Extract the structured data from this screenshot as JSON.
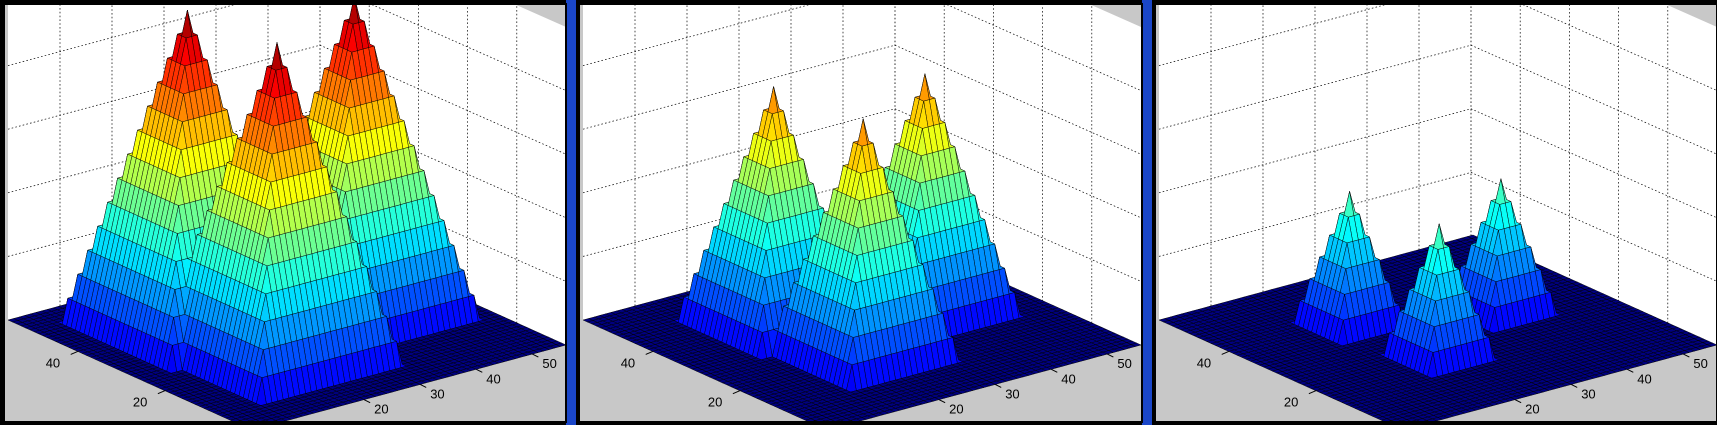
{
  "colors": {
    "pane_top": "#c8c8c8",
    "wall": "#ffffff",
    "floor": "#000080",
    "divider": "#1a46c8",
    "frame": "#000000"
  },
  "chart_data": [
    {
      "type": "surface3d",
      "title": "",
      "xlabel": "",
      "ylabel": "",
      "zlabel": "",
      "x_ticks": [
        20,
        30,
        40,
        50
      ],
      "y_ticks": [
        20,
        40
      ],
      "xlim": [
        0,
        56
      ],
      "ylim": [
        0,
        56
      ],
      "grid": true,
      "colormap": "jet",
      "pyramids": [
        {
          "x": 18,
          "y": 38,
          "half_width": 13,
          "height": 1.0
        },
        {
          "x": 20,
          "y": 20,
          "half_width": 13,
          "height": 1.0
        },
        {
          "x": 40,
          "y": 28,
          "half_width": 13,
          "height": 1.0
        }
      ]
    },
    {
      "type": "surface3d",
      "title": "",
      "xlabel": "",
      "ylabel": "",
      "zlabel": "",
      "x_ticks": [
        20,
        30,
        40,
        50
      ],
      "y_ticks": [
        20,
        40
      ],
      "xlim": [
        0,
        56
      ],
      "ylim": [
        0,
        56
      ],
      "grid": true,
      "colormap": "jet",
      "pyramids": [
        {
          "x": 20,
          "y": 38,
          "half_width": 10,
          "height": 0.75
        },
        {
          "x": 22,
          "y": 20,
          "half_width": 10,
          "height": 0.75
        },
        {
          "x": 40,
          "y": 29,
          "half_width": 10,
          "height": 0.75
        }
      ]
    },
    {
      "type": "surface3d",
      "title": "",
      "xlabel": "",
      "ylabel": "",
      "zlabel": "",
      "x_ticks": [
        20,
        30,
        40,
        50
      ],
      "y_ticks": [
        20,
        40
      ],
      "xlim": [
        0,
        56
      ],
      "ylim": [
        0,
        56
      ],
      "grid": true,
      "colormap": "jet",
      "pyramids": [
        {
          "x": 20,
          "y": 38,
          "half_width": 6,
          "height": 0.42
        },
        {
          "x": 22,
          "y": 20,
          "half_width": 6,
          "height": 0.42
        },
        {
          "x": 40,
          "y": 29,
          "half_width": 6,
          "height": 0.42
        }
      ]
    }
  ]
}
